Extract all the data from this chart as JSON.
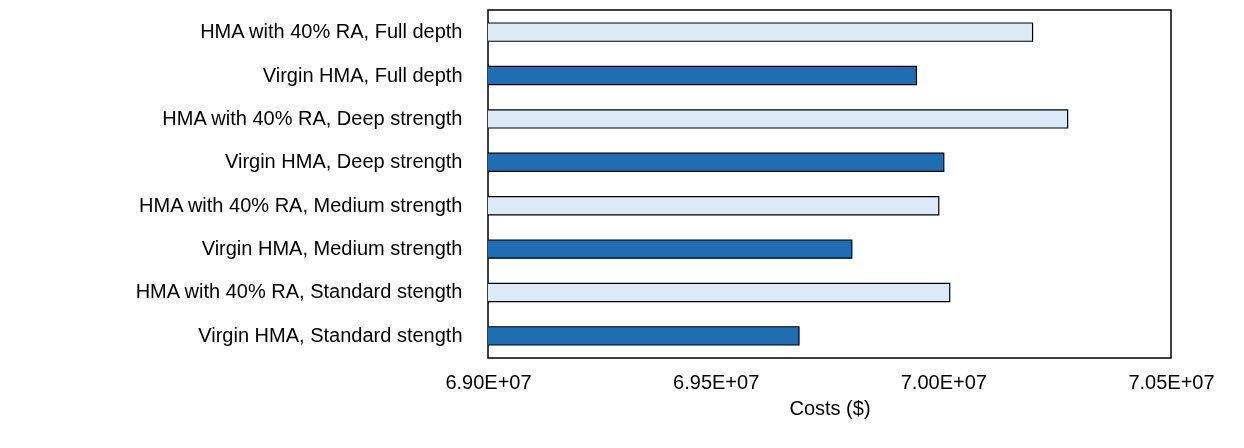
{
  "chart_data": {
    "type": "bar",
    "orientation": "horizontal",
    "xlabel": "Costs ($)",
    "categories": [
      "HMA with 40% RA, Full depth",
      "Virgin HMA, Full depth",
      "HMA with 40% RA, Deep strength",
      "Virgin HMA, Deep strength",
      "HMA with 40% RA, Medium strength",
      "Virgin HMA, Medium strength",
      "HMA with 40% RA, Standard stength",
      "Virgin HMA, Standard stength"
    ],
    "values": [
      70196000,
      69941000,
      70273000,
      70001000,
      69990000,
      69799000,
      70014000,
      69683000
    ],
    "colors": [
      "#dce9f6",
      "#1f6db3",
      "#dce9f6",
      "#1f6db3",
      "#dce9f6",
      "#1f6db3",
      "#dce9f6",
      "#1f6db3"
    ],
    "xlim": [
      69000000,
      70500000
    ],
    "xticks": [
      {
        "value": 69000000,
        "label": "6.90E+07"
      },
      {
        "value": 69500000,
        "label": "6.95E+07"
      },
      {
        "value": 70000000,
        "label": "7.00E+07"
      },
      {
        "value": 70500000,
        "label": "7.05E+07"
      }
    ],
    "grid": false
  }
}
